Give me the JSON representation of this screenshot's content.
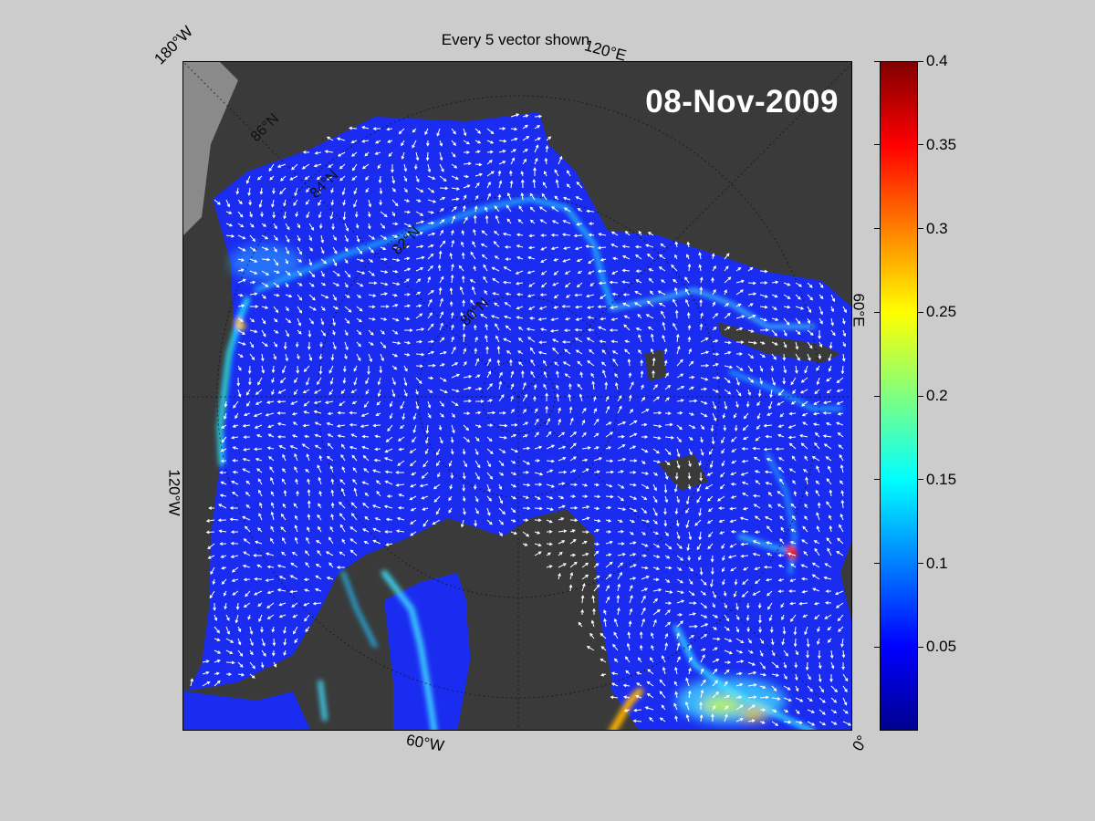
{
  "figure": {
    "title": "Every 5 vector shown",
    "date": "08-Nov-2009"
  },
  "map": {
    "projection": "polar stereographic (north)",
    "longitude_labels": {
      "lon_180w": "180°W",
      "lon_120e": "120°E",
      "lon_60e": "60°E",
      "lon_120w": "120°W",
      "lon_60w": "60°W",
      "lon_0": "0°"
    },
    "latitude_labels": [
      "86°N",
      "84°N",
      "82°N",
      "80°N"
    ],
    "land_color": "#3a3a3a",
    "outside_domain_color": "#808080",
    "ice_base_color": "#1428f0",
    "vector_color": "#ffffff"
  },
  "colorbar": {
    "min": 0,
    "max": 0.4,
    "ticks": [
      "0.05",
      "0.1",
      "0.15",
      "0.2",
      "0.25",
      "0.3",
      "0.35",
      "0.4"
    ],
    "tick_values": [
      0.05,
      0.1,
      0.15,
      0.2,
      0.25,
      0.3,
      0.35,
      0.4
    ],
    "colormap": "jet"
  }
}
